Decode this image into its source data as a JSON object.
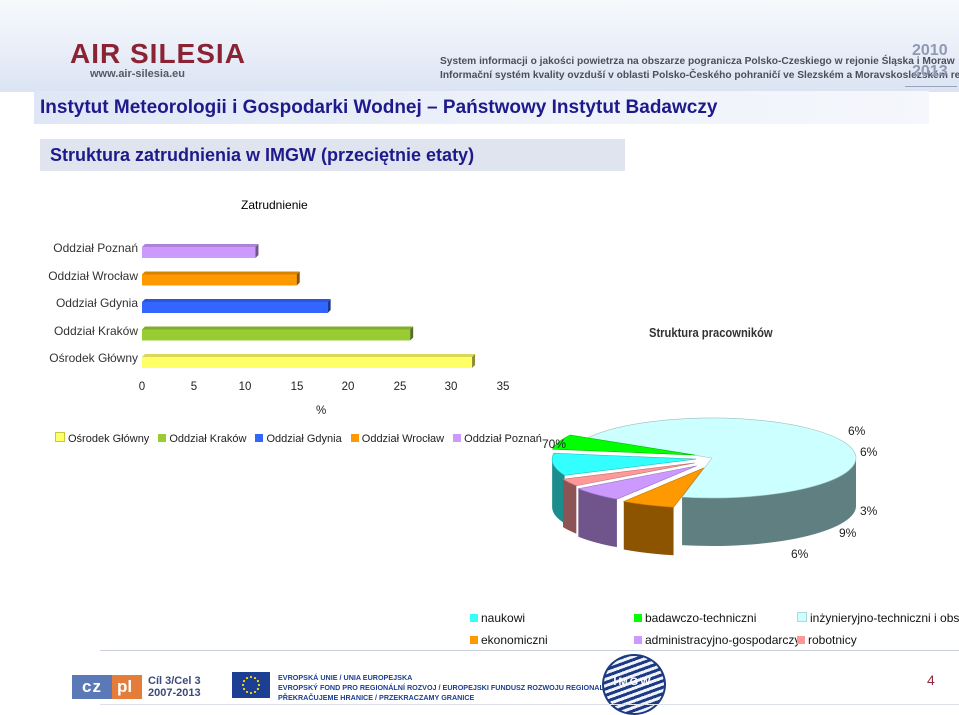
{
  "header": {
    "logo": "AIR SILESIA",
    "url": "www.air-silesia.eu",
    "tagline_pl": "System informacji o jakości powietrza na obszarze pogranicza Polsko-Czeskiego w rejonie Śląska i Moraw",
    "tagline_cz": "Informační systém kvality ovzduší v oblasti Polsko-Českého pohraničí ve Slezském a Moravskoslezském regionu",
    "year_start": "2010",
    "year_end": "2013"
  },
  "titles": {
    "institute": "Instytut Meteorologii i Gospodarki Wodnej – Państwowy Instytut Badawczy",
    "subtitle": "Struktura zatrudnienia w IMGW (przeciętnie etaty)"
  },
  "colors": {
    "title_text": "#1f1a8c",
    "brand": "#8a2333"
  },
  "chart_data": [
    {
      "type": "bar",
      "orientation": "horizontal",
      "title": "Zatrudnienie",
      "xlabel": "%",
      "xlim": [
        0,
        35
      ],
      "ticks": [
        "0",
        "5",
        "10",
        "15",
        "20",
        "25",
        "30",
        "35"
      ],
      "categories": [
        "Ośrodek Główny",
        "Oddział Kraków",
        "Oddział Gdynia",
        "Oddział Wrocław",
        "Oddział Poznań"
      ],
      "values": [
        32,
        26,
        18,
        15,
        11
      ],
      "colors": [
        "#ffff66",
        "#99cc33",
        "#3366ff",
        "#ff9900",
        "#cc99ff"
      ],
      "legend": [
        "Ośrodek Główny",
        "Oddział Kraków",
        "Oddział Gdynia",
        "Oddział Wrocław",
        "Oddział Poznań"
      ],
      "legend_position": "bottom",
      "grid": false
    },
    {
      "type": "pie",
      "style": "3d",
      "title": "Struktura pracowników",
      "categories": [
        "naukowi",
        "badawczo-techniczni",
        "inżynieryjno-techniczni i obsługi",
        "ekonomiczni",
        "administracyjno-gospodarczy",
        "robotnicy"
      ],
      "values": [
        9,
        6,
        70,
        6,
        6,
        3
      ],
      "value_labels": [
        "9%",
        "6%",
        "70%",
        "6%",
        "6%",
        "3%"
      ],
      "colors": [
        "#33ffff",
        "#00ff00",
        "#ccffff",
        "#ff9900",
        "#cc99ff",
        "#ff9999"
      ],
      "legend_position": "bottom"
    }
  ],
  "footer": {
    "cz": "cz",
    "pl": "pl",
    "cil3": "Cíl 3/Cel 3",
    "cil3_years": "2007-2013",
    "eu_line1": "EVROPSKÁ UNIE / UNIA EUROPEJSKA",
    "eu_line2": "EVROPSKÝ FOND PRO REGIONÁLNÍ ROZVOJ / EUROPEJSKI FUNDUSZ ROZWOJU REGIONALNEGO",
    "eu_line3": "PŘEKRAČUJEME HRANICE / PRZEKRACZAMY GRANICE",
    "imgw": "IMGW",
    "page_number": "4"
  }
}
